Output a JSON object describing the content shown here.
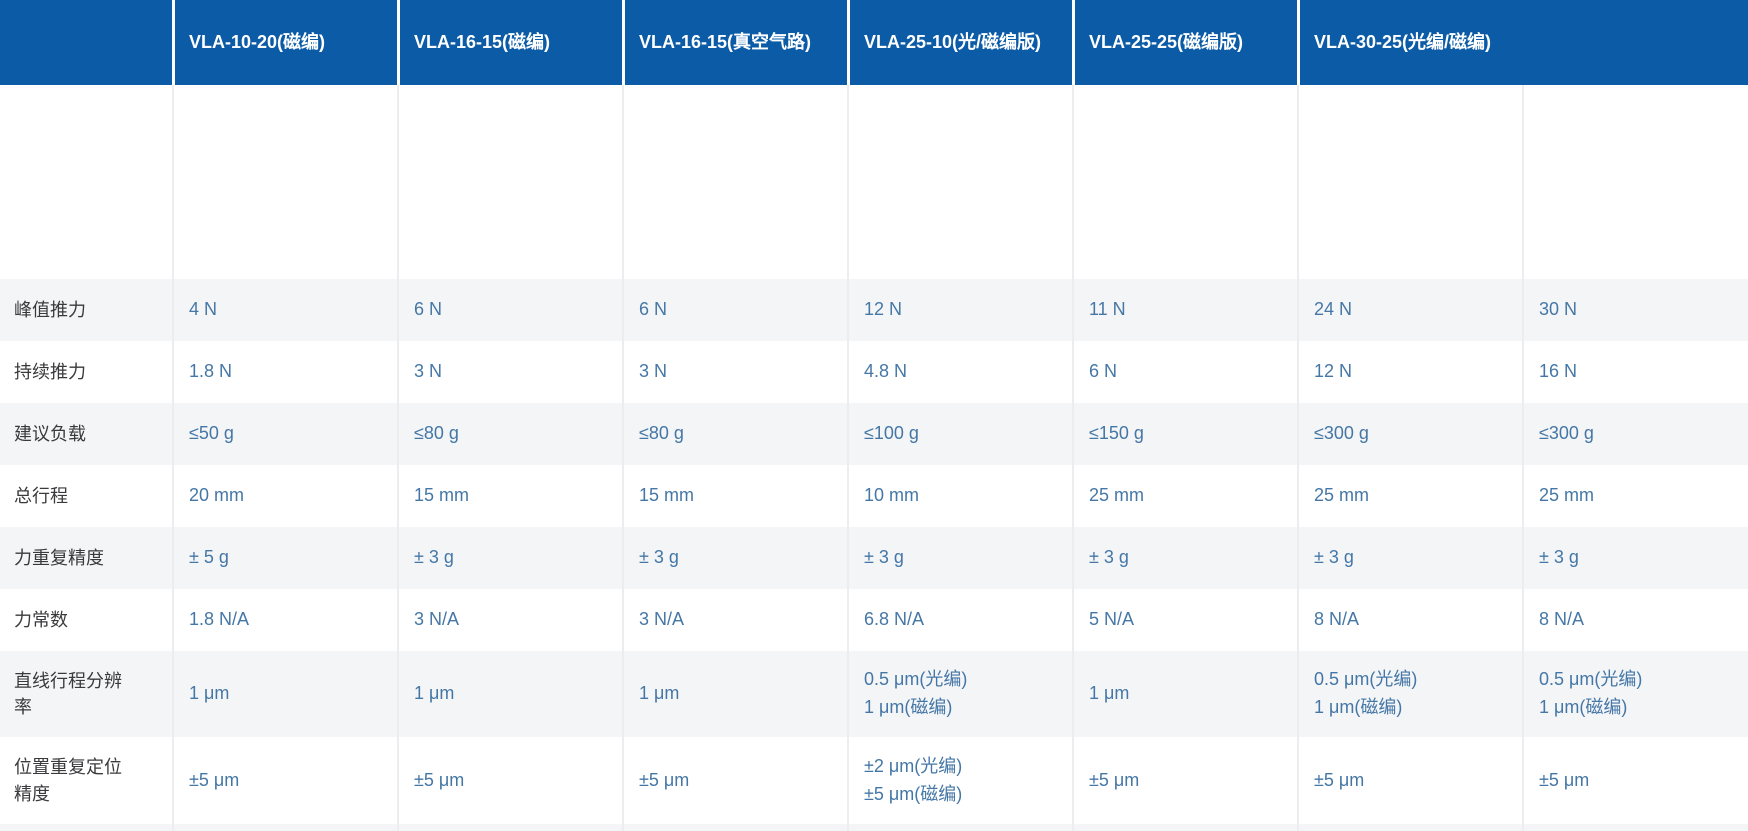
{
  "theme": {
    "header_bg": "#0c5ba6",
    "header_text": "#ffffff",
    "row_alt_bg": "#f4f5f7",
    "row_bg": "#ffffff",
    "divider": "#ebedf0",
    "header_divider": "#ffffff",
    "label_text": "#3a3a3c",
    "value_text": "#4577a6"
  },
  "table": {
    "corner_label": "",
    "header_columns": [
      {
        "label": "VLA-10-20(磁编)",
        "span": 1
      },
      {
        "label": "VLA-16-15(磁编)",
        "span": 1
      },
      {
        "label": "VLA-16-15(真空气路)",
        "span": 1
      },
      {
        "label": "VLA-25-10(光/磁编版)",
        "span": 1
      },
      {
        "label": "VLA-25-25(磁编版)",
        "span": 1
      },
      {
        "label": "VLA-30-25(光编/磁编)",
        "span": 2
      }
    ],
    "rows": [
      {
        "label": "峰值推力",
        "values": [
          "4 N",
          "6 N",
          "6 N",
          "12 N",
          "11 N",
          "24 N",
          "30 N"
        ]
      },
      {
        "label": "持续推力",
        "values": [
          "1.8 N",
          "3 N",
          "3 N",
          "4.8 N",
          "6 N",
          "12 N",
          "16 N"
        ]
      },
      {
        "label": "建议负载",
        "values": [
          "≤50 g",
          "≤80 g",
          "≤80 g",
          "≤100 g",
          "≤150 g",
          "≤300 g",
          "≤300 g"
        ]
      },
      {
        "label": "总行程",
        "values": [
          "20 mm",
          "15 mm",
          "15 mm",
          "10 mm",
          "25 mm",
          "25 mm",
          "25 mm"
        ]
      },
      {
        "label": "力重复精度",
        "values": [
          "± 5 g",
          "± 3 g",
          "± 3 g",
          "± 3 g",
          "± 3 g",
          "± 3 g",
          "± 3 g"
        ]
      },
      {
        "label": "力常数",
        "values": [
          "1.8 N/A",
          "3 N/A",
          "3 N/A",
          "6.8 N/A",
          "5 N/A",
          "8 N/A",
          "8 N/A"
        ]
      },
      {
        "label": "直线行程分辨率",
        "values": [
          "1 μm",
          "1 μm",
          "1 μm",
          "0.5 μm(光编)\n1 μm(磁编)",
          "1 μm",
          "0.5 μm(光编)\n1 μm(磁编)",
          "0.5 μm(光编)\n1 μm(磁编)"
        ]
      },
      {
        "label": "位置重复定位精度",
        "values": [
          "±5 μm",
          "±5 μm",
          "±5 μm",
          "±2 μm(光编)\n±5 μm(磁编)",
          "±5 μm",
          "±5 μm",
          "±5 μm"
        ]
      }
    ]
  }
}
